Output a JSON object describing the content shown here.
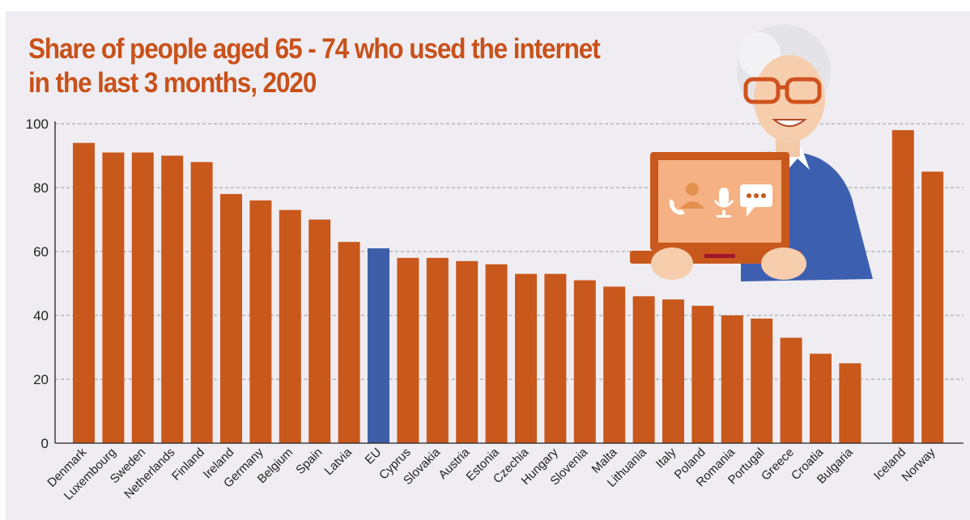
{
  "title_lines": [
    "Share of people aged 65 - 74 who used the internet",
    "in the last 3 months, 2020"
  ],
  "colors": {
    "bar": "#c9581c",
    "highlight": "#3e5ea8",
    "title": "#c9511a",
    "grid": "#9a9a9a",
    "background": "#efedf2"
  },
  "illustration": {
    "description_icon": "elderly-woman-with-laptop-illustration",
    "laptop_icons": [
      "phone-contact-icon",
      "microphone-icon",
      "chat-bubble-icon"
    ]
  },
  "chart_data": {
    "type": "bar",
    "title": "Share of people aged 65 - 74 who used the internet in the last 3 months, 2020",
    "xlabel": "",
    "ylabel": "",
    "ylim": [
      0,
      100
    ],
    "yticks": [
      0,
      20,
      40,
      60,
      80,
      100
    ],
    "grid": true,
    "categories": [
      "Denmark",
      "Luxembourg",
      "Sweden",
      "Netherlands",
      "Finland",
      "Ireland",
      "Germany",
      "Belgium",
      "Spain",
      "Latvia",
      "EU",
      "Cyprus",
      "Slovakia",
      "Austria",
      "Estonia",
      "Czechia",
      "Hungary",
      "Slovenia",
      "Malta",
      "Lithuania",
      "Italy",
      "Poland",
      "Romania",
      "Portugal",
      "Greece",
      "Croatia",
      "Bulgaria",
      "Iceland",
      "Norway"
    ],
    "values": [
      94,
      91,
      91,
      90,
      88,
      78,
      76,
      73,
      70,
      63,
      61,
      58,
      58,
      57,
      56,
      53,
      53,
      51,
      49,
      46,
      45,
      43,
      40,
      39,
      33,
      28,
      25,
      98,
      85
    ],
    "highlight": [
      "EU"
    ],
    "gap_before": [
      "Iceland"
    ]
  }
}
